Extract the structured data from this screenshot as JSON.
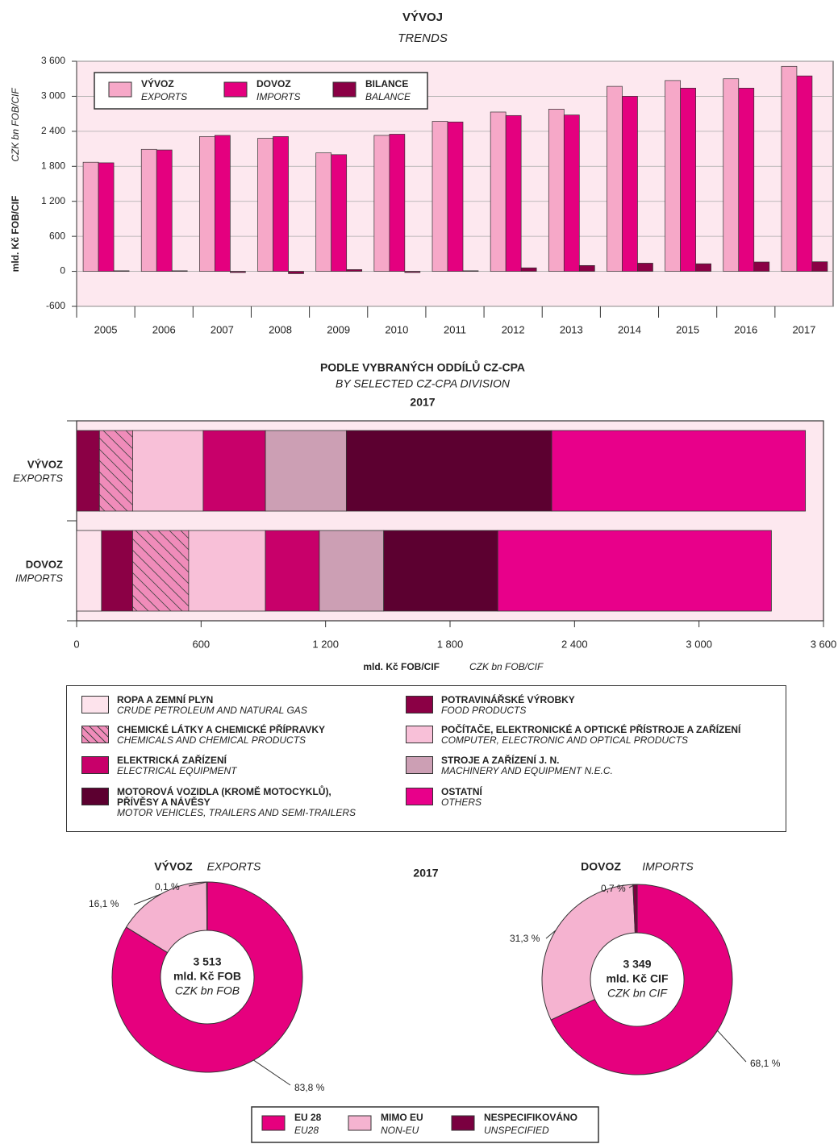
{
  "chart_data": [
    {
      "type": "bar",
      "title": "VÝVOJ",
      "subtitle": "TRENDS",
      "ylabel": "mld. Kč FOB/CIF",
      "ylabel_en": "CZK bn FOB/CIF",
      "categories": [
        "2005",
        "2006",
        "2007",
        "2008",
        "2009",
        "2010",
        "2011",
        "2012",
        "2013",
        "2014",
        "2015",
        "2016",
        "2017"
      ],
      "series": [
        {
          "name": "VÝVOZ",
          "subname": "EXPORTS",
          "color": "#f6a8c8",
          "values": [
            1870,
            2090,
            2310,
            2280,
            2030,
            2330,
            2570,
            2730,
            2780,
            3170,
            3270,
            3300,
            3513
          ]
        },
        {
          "name": "DOVOZ",
          "subname": "IMPORTS",
          "color": "#e4007f",
          "values": [
            1860,
            2080,
            2330,
            2310,
            2000,
            2350,
            2560,
            2670,
            2680,
            3000,
            3140,
            3140,
            3349
          ]
        },
        {
          "name": "BILANCE",
          "subname": "BALANCE",
          "color": "#8a0045",
          "values": [
            10,
            10,
            -20,
            -40,
            30,
            -20,
            10,
            60,
            100,
            140,
            130,
            160,
            164
          ]
        }
      ],
      "ylim": [
        -600,
        3600
      ],
      "yticks": [
        -600,
        0,
        600,
        {
          "value": 1200,
          "label": "1 200"
        },
        {
          "value": 1800,
          "label": "1 800"
        },
        {
          "value": 2400,
          "label": "2 400"
        },
        {
          "value": 3000,
          "label": "3 000"
        },
        {
          "value": 3600,
          "label": "3 600"
        }
      ],
      "grid": true
    },
    {
      "type": "barh",
      "stacked": true,
      "title": "PODLE VYBRANÝCH ODDÍLŮ CZ-CPA",
      "subtitle": "BY SELECTED CZ-CPA DIVISION",
      "year": "2017",
      "categories": [
        "VÝVOZ",
        "DOVOZ"
      ],
      "category_subnames": [
        "EXPORTS",
        "IMPORTS"
      ],
      "xlabel": "mld. Kč FOB/CIF",
      "xlabel_en": "CZK bn FOB/CIF",
      "series": [
        {
          "name": "ROPA A ZEMNÍ PLYN",
          "subname": "CRUDE PETROLEUM AND NATURAL GAS",
          "color": "#fde3ec",
          "values": [
            0,
            120
          ]
        },
        {
          "name": "POTRAVINÁŘSKÉ VÝROBKY",
          "subname": "FOOD PRODUCTS",
          "color": "#8b0045",
          "values": [
            110,
            150
          ]
        },
        {
          "name": "CHEMICKÉ LÁTKY A CHEMICKÉ PŘÍPRAVKY",
          "subname": "CHEMICALS AND CHEMICAL PRODUCTS",
          "color": "#f08cba",
          "hatch": true,
          "values": [
            160,
            270
          ]
        },
        {
          "name": "POČÍTAČE, ELEKTRONICKÉ A OPTICKÉ PŘÍSTROJE A ZAŘÍZENÍ",
          "subname": "COMPUTER, ELECTRONIC AND OPTICAL PRODUCTS",
          "color": "#f8c0d8",
          "values": [
            340,
            370
          ]
        },
        {
          "name": "ELEKTRICKÁ ZAŘÍZENÍ",
          "subname": "ELECTRICAL EQUIPMENT",
          "color": "#c8006a",
          "values": [
            300,
            260
          ]
        },
        {
          "name": "STROJE A ZAŘÍZENÍ J. N.",
          "subname": "MACHINERY AND EQUIPMENT N.E.C.",
          "color": "#cc9fb4",
          "values": [
            390,
            310
          ]
        },
        {
          "name": "MOTOROVÁ VOZIDLA (KROMĚ MOTOCYKLŮ),\nPŘÍVĚSY A NÁVĚSY",
          "subname": "MOTOR VEHICLES, TRAILERS AND SEMI-TRAILERS",
          "color": "#5c0030",
          "values": [
            990,
            550
          ]
        },
        {
          "name": "OSTATNÍ",
          "subname": "OTHERS",
          "color": "#e8008a",
          "values": [
            1223,
            1319
          ]
        }
      ],
      "xlim": [
        0,
        3600
      ],
      "xticks": [
        0,
        600,
        {
          "value": 1200,
          "label": "1 200"
        },
        {
          "value": 1800,
          "label": "1 800"
        },
        {
          "value": 2400,
          "label": "2 400"
        },
        {
          "value": 3000,
          "label": "3 000"
        },
        {
          "value": 3600,
          "label": "3 600"
        }
      ]
    },
    {
      "type": "pie",
      "donut": true,
      "year": "2017",
      "categories": [
        "EU 28",
        "MIMO EU",
        "NESPECIFIKOVÁNO"
      ],
      "category_subnames": [
        "EU28",
        "NON-EU",
        "UNSPECIFIED"
      ],
      "colors": [
        "#e6007e",
        "#f5b3d0",
        "#7a0040"
      ],
      "pies": [
        {
          "title": "VÝVOZ",
          "subtitle": "EXPORTS",
          "values": [
            83.8,
            16.1,
            0.1
          ],
          "value_labels": [
            "83,8 %",
            "16,1 %",
            "0,1 %"
          ],
          "center": [
            "3 513",
            "mld. Kč FOB",
            "CZK bn FOB"
          ]
        },
        {
          "title": "DOVOZ",
          "subtitle": "IMPORTS",
          "values": [
            68.1,
            31.3,
            0.7
          ],
          "value_labels": [
            "68,1 %",
            "31,3 %",
            "0,7 %"
          ],
          "center": [
            "3 349",
            "mld. Kč CIF",
            "CZK bn CIF"
          ]
        }
      ]
    }
  ]
}
